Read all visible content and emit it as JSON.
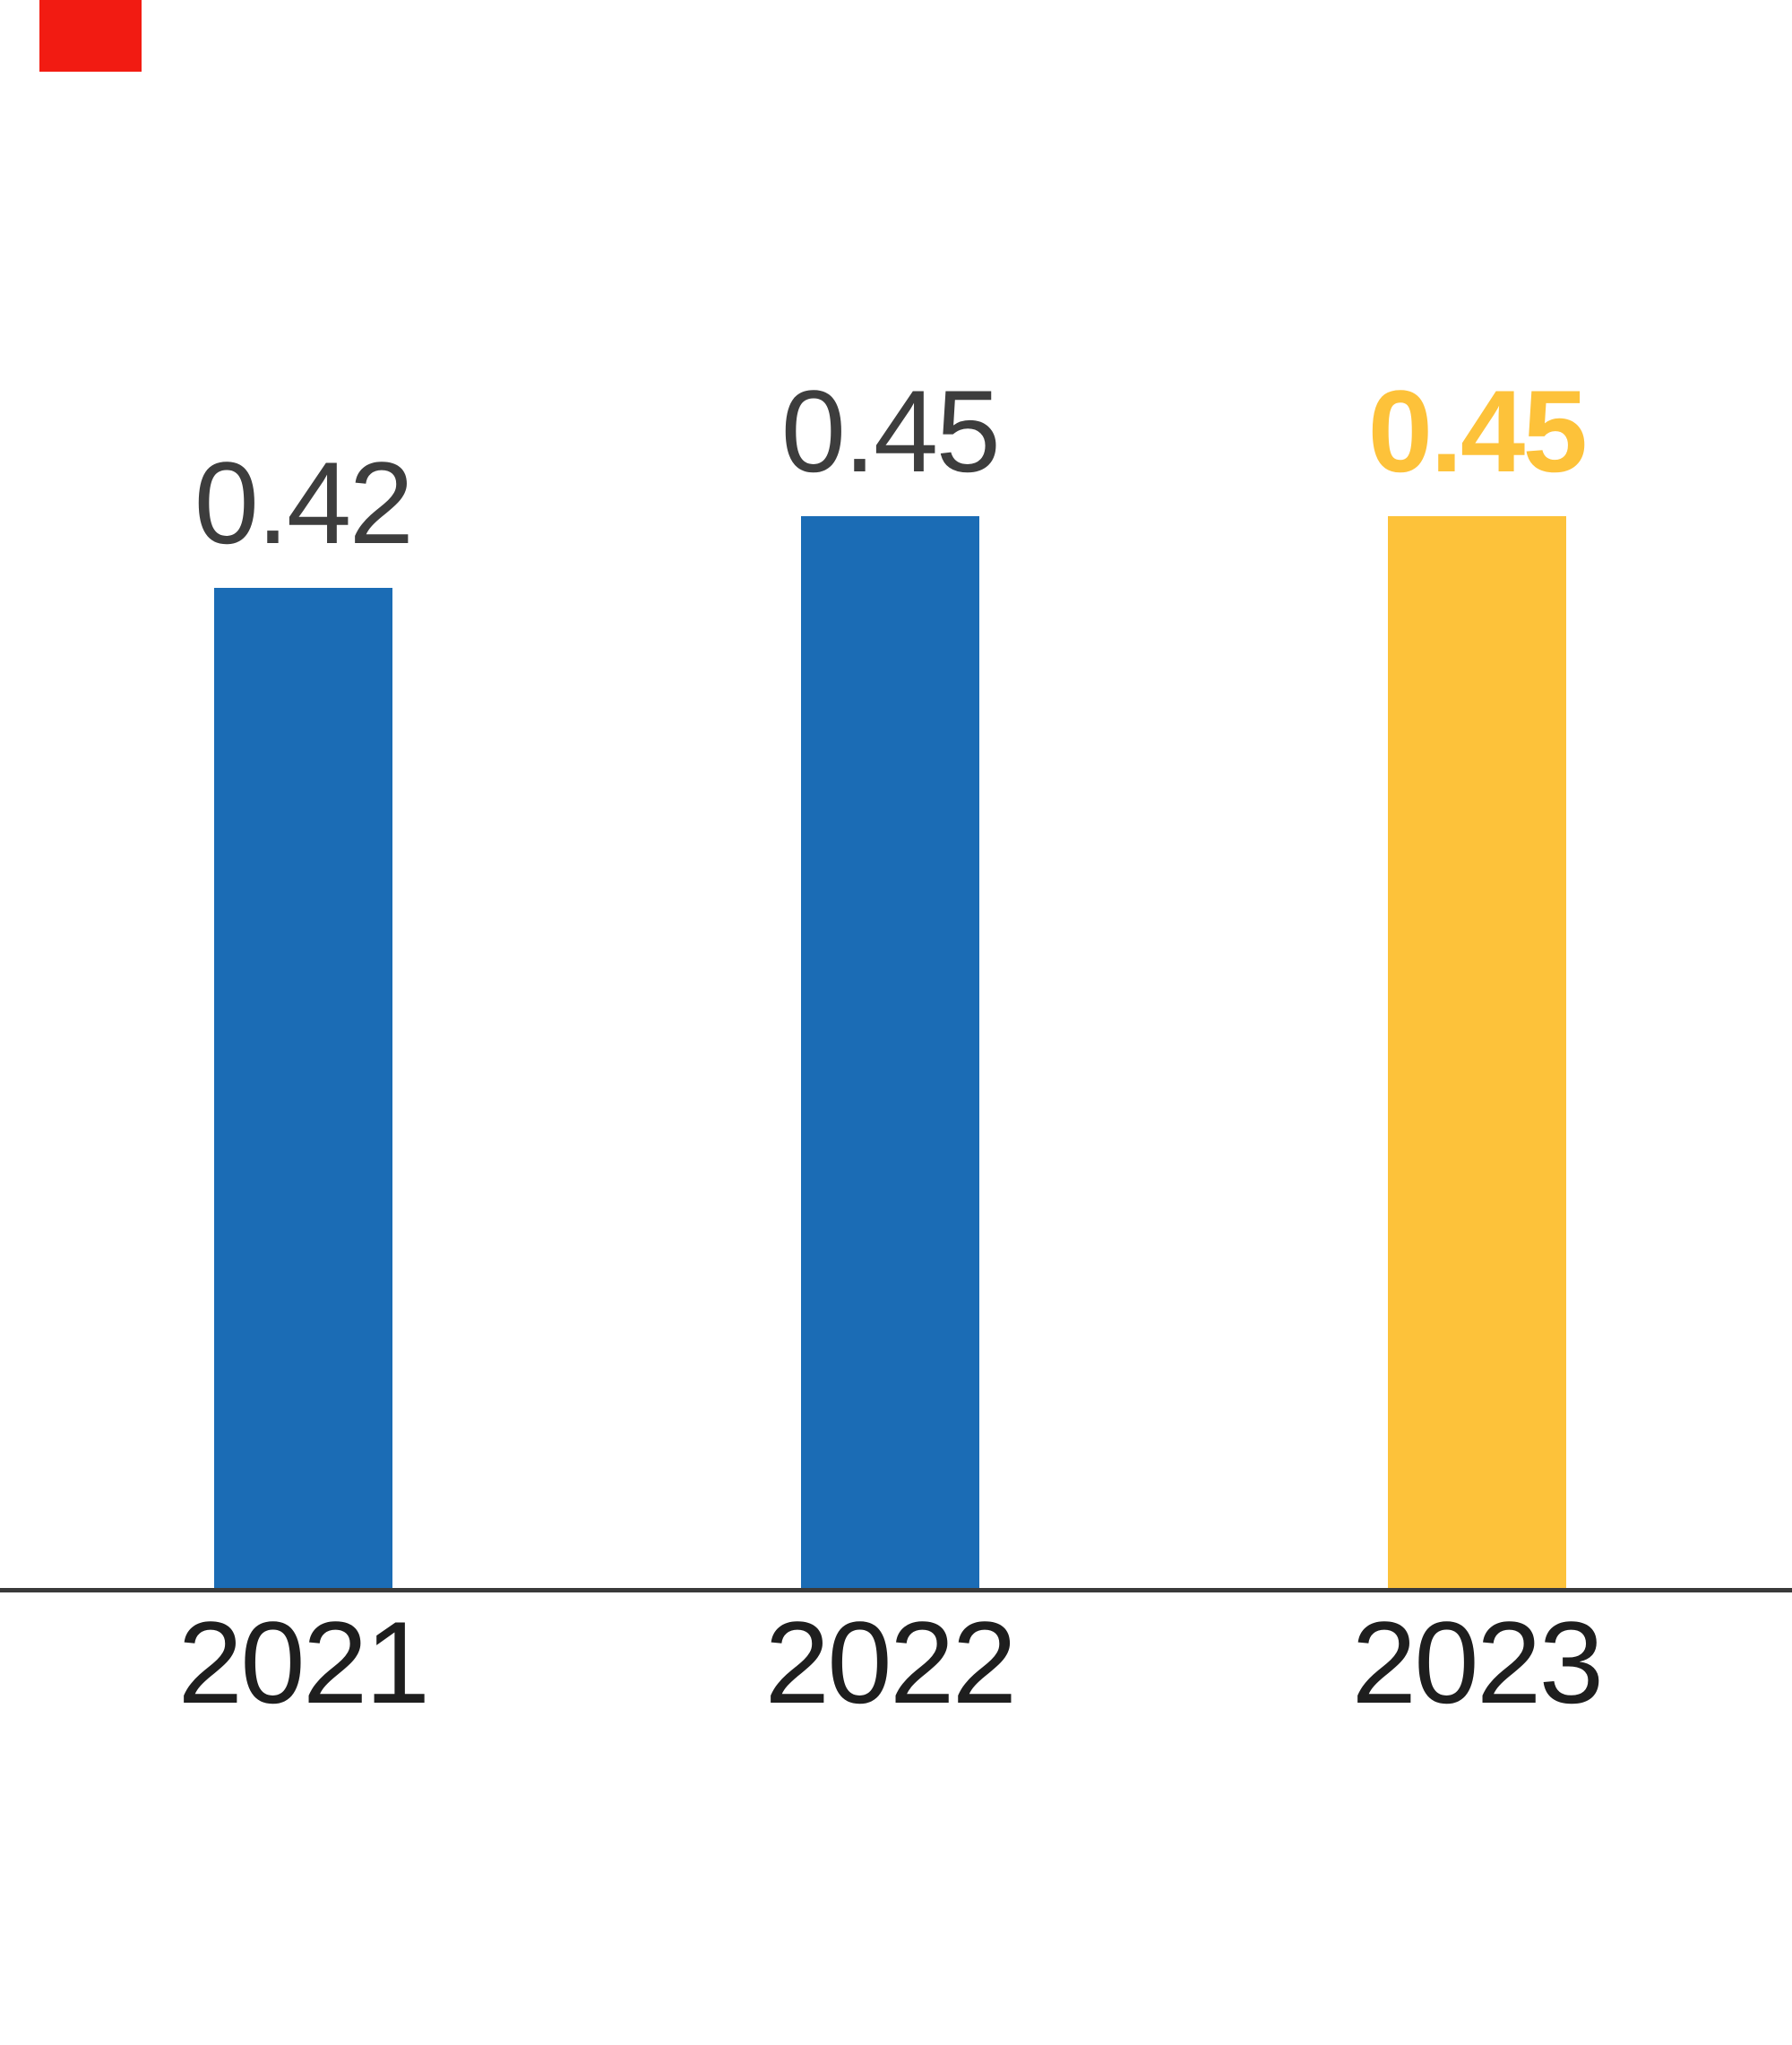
{
  "window": {
    "background": "#FFFFFF"
  },
  "red_marker": {
    "color": "#F21B12"
  },
  "chart_data": {
    "type": "bar",
    "title": "",
    "xlabel": "",
    "ylabel": "",
    "categories": [
      "2021",
      "2022",
      "2023"
    ],
    "values": [
      0.42,
      0.45,
      0.45
    ],
    "value_labels": [
      "0.42",
      "0.45",
      "0.45"
    ],
    "ylim": [
      0,
      0.5
    ],
    "grid": false,
    "legend": "none",
    "y_axis_visible": false,
    "x_axis_line": true,
    "default_bar_color": "#1B6CB5",
    "highlight_color": "#FDC23A",
    "highlighted_index": 2,
    "bar_colors": [
      "#1B6CB5",
      "#1B6CB5",
      "#FDC23A"
    ],
    "value_label_colors": [
      "#3D3D3D",
      "#3D3D3D",
      "#FDC23A"
    ],
    "value_label_weights": [
      "normal",
      "normal",
      "bold"
    ],
    "axis_line_color": "#3A3A3A",
    "tick_label_color": "#1E1E1E"
  }
}
